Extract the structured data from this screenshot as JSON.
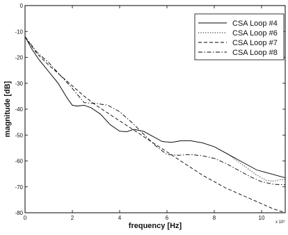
{
  "chart_data": {
    "type": "line",
    "xlabel": "frequency [Hz]",
    "ylabel": "magnitude [dB]",
    "x_multiplier_label": "x 10³",
    "xlim": [
      0,
      11
    ],
    "ylim": [
      -80,
      0
    ],
    "xticks": [
      0,
      2,
      4,
      6,
      8,
      10
    ],
    "yticks": [
      0,
      -10,
      -20,
      -30,
      -40,
      -50,
      -60,
      -70,
      -80
    ],
    "xtick_labels": [
      "0",
      "2",
      "4",
      "6",
      "8",
      "10"
    ],
    "ytick_labels": [
      "0",
      "-10",
      "-20",
      "-30",
      "-40",
      "-50",
      "-60",
      "-70",
      "-80"
    ],
    "grid": false,
    "legend_position": "top-right",
    "series": [
      {
        "name": "CSA Loop #4",
        "style": "solid",
        "color": "#000000",
        "points": [
          [
            0,
            -12
          ],
          [
            0.3,
            -17
          ],
          [
            0.6,
            -21
          ],
          [
            1.0,
            -25.5
          ],
          [
            1.4,
            -30
          ],
          [
            1.8,
            -36
          ],
          [
            2.0,
            -38.5
          ],
          [
            2.2,
            -38.8
          ],
          [
            2.5,
            -38.5
          ],
          [
            2.8,
            -39.5
          ],
          [
            3.2,
            -42
          ],
          [
            3.6,
            -46
          ],
          [
            4.0,
            -48.5
          ],
          [
            4.3,
            -48.7
          ],
          [
            4.6,
            -47.8
          ],
          [
            5.0,
            -48.5
          ],
          [
            5.4,
            -50.5
          ],
          [
            5.8,
            -52.5
          ],
          [
            6.2,
            -52.8
          ],
          [
            6.6,
            -52.2
          ],
          [
            7.0,
            -52.2
          ],
          [
            7.5,
            -53
          ],
          [
            8.0,
            -54.5
          ],
          [
            8.6,
            -57.5
          ],
          [
            9.2,
            -60.5
          ],
          [
            9.8,
            -63.5
          ],
          [
            10.4,
            -65
          ],
          [
            11.0,
            -66.5
          ]
        ]
      },
      {
        "name": "CSA Loop #6",
        "style": "dotted",
        "color": "#000000",
        "points": [
          [
            0,
            -12
          ],
          [
            0.3,
            -17
          ],
          [
            0.6,
            -21
          ],
          [
            1.0,
            -25.5
          ],
          [
            1.4,
            -30
          ],
          [
            1.8,
            -36
          ],
          [
            2.0,
            -38.5
          ],
          [
            2.2,
            -38.8
          ],
          [
            2.5,
            -38.5
          ],
          [
            2.8,
            -39.5
          ],
          [
            3.2,
            -42
          ],
          [
            3.6,
            -46
          ],
          [
            4.0,
            -48.5
          ],
          [
            4.3,
            -48.7
          ],
          [
            4.6,
            -47.8
          ],
          [
            5.0,
            -48.5
          ],
          [
            5.4,
            -50.5
          ],
          [
            5.8,
            -52.5
          ],
          [
            6.2,
            -52.8
          ],
          [
            6.6,
            -52.2
          ],
          [
            7.0,
            -52.2
          ],
          [
            7.5,
            -53
          ],
          [
            8.0,
            -54.5
          ],
          [
            8.6,
            -57.5
          ],
          [
            9.2,
            -61.5
          ],
          [
            9.8,
            -65.5
          ],
          [
            10.2,
            -67.5
          ],
          [
            10.5,
            -67.8
          ],
          [
            10.8,
            -67.2
          ],
          [
            11.0,
            -67.2
          ]
        ]
      },
      {
        "name": "CSA Loop #7",
        "style": "dashed",
        "color": "#000000",
        "points": [
          [
            0,
            -12
          ],
          [
            0.5,
            -18.5
          ],
          [
            1.0,
            -23
          ],
          [
            1.5,
            -27
          ],
          [
            2.0,
            -31
          ],
          [
            2.5,
            -35
          ],
          [
            3.0,
            -38.5
          ],
          [
            3.5,
            -41.5
          ],
          [
            4.0,
            -44.5
          ],
          [
            4.5,
            -47.5
          ],
          [
            5.0,
            -50.5
          ],
          [
            5.5,
            -53.5
          ],
          [
            6.0,
            -56.5
          ],
          [
            6.5,
            -59.5
          ],
          [
            7.0,
            -62.5
          ],
          [
            7.5,
            -65.5
          ],
          [
            8.0,
            -68
          ],
          [
            8.5,
            -70.5
          ],
          [
            9.0,
            -72.5
          ],
          [
            9.5,
            -74.5
          ],
          [
            10.0,
            -76.5
          ],
          [
            10.5,
            -78.5
          ],
          [
            11.0,
            -80
          ]
        ]
      },
      {
        "name": "CSA Loop #8",
        "style": "dashdot",
        "color": "#000000",
        "points": [
          [
            0,
            -12
          ],
          [
            0.5,
            -18
          ],
          [
            1.0,
            -22
          ],
          [
            1.5,
            -27
          ],
          [
            2.0,
            -32
          ],
          [
            2.5,
            -37.5
          ],
          [
            3.0,
            -37.8
          ],
          [
            3.5,
            -38.5
          ],
          [
            4.0,
            -41
          ],
          [
            4.5,
            -45
          ],
          [
            5.0,
            -49.5
          ],
          [
            5.5,
            -54
          ],
          [
            6.0,
            -57.5
          ],
          [
            6.5,
            -57.8
          ],
          [
            7.0,
            -57.5
          ],
          [
            7.5,
            -58
          ],
          [
            8.0,
            -59
          ],
          [
            8.5,
            -61
          ],
          [
            9.0,
            -63.5
          ],
          [
            9.5,
            -66
          ],
          [
            10.0,
            -68
          ],
          [
            10.5,
            -69
          ],
          [
            11.0,
            -69.2
          ]
        ]
      }
    ]
  }
}
